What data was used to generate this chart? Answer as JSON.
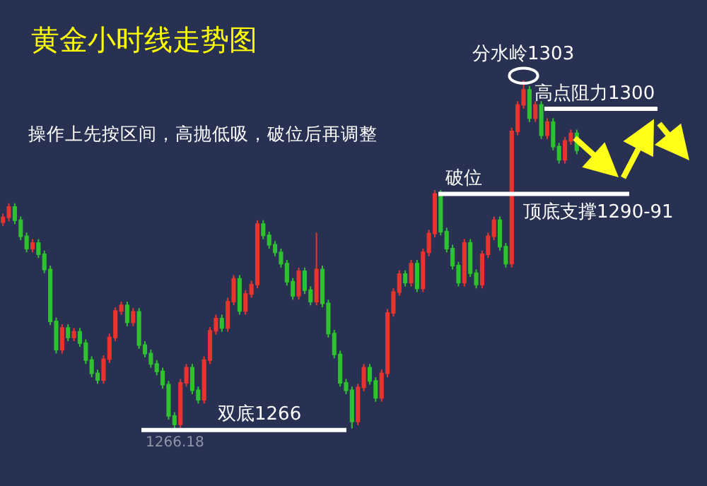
{
  "chart_data": {
    "type": "candlestick",
    "title": "黄金小时线走势图",
    "subtitle": "操作上先按区间，高抛低吸，破位后再调整",
    "categories": [
      null,
      null,
      null,
      null,
      null,
      null,
      null,
      null,
      null,
      null,
      null,
      null,
      null,
      null,
      null,
      null,
      null,
      null,
      null,
      null,
      null,
      null,
      null,
      null,
      null,
      null,
      null,
      null,
      null,
      null,
      null,
      null,
      null,
      null,
      null,
      null,
      null,
      null,
      null,
      null,
      null,
      null,
      null,
      null,
      null,
      null,
      null,
      null,
      null,
      null,
      null,
      null,
      null,
      null,
      null,
      null,
      null,
      null,
      null,
      null,
      null,
      null,
      null,
      null,
      null,
      null,
      null,
      null,
      null,
      null,
      null,
      null,
      null,
      null,
      null,
      null,
      null,
      null,
      null,
      null,
      null,
      null,
      null,
      null,
      null,
      null,
      null,
      null,
      null,
      null,
      null,
      null,
      null,
      null,
      null,
      null,
      null,
      null
    ],
    "ohlc": [
      [
        1288.0,
        1288.9,
        1287.6,
        1288.5
      ],
      [
        1288.5,
        1290.0,
        1288.1,
        1289.6
      ],
      [
        1289.6,
        1290.0,
        1287.8,
        1288.2
      ],
      [
        1288.2,
        1288.6,
        1286.1,
        1286.5
      ],
      [
        1286.5,
        1286.9,
        1284.8,
        1285.2
      ],
      [
        1285.2,
        1286.2,
        1284.8,
        1285.8
      ],
      [
        1285.8,
        1286.2,
        1284.2,
        1284.6
      ],
      [
        1284.6,
        1285.0,
        1282.6,
        1283.0
      ],
      [
        1283.0,
        1283.4,
        1277.1,
        1277.5
      ],
      [
        1277.5,
        1277.9,
        1274.1,
        1274.5
      ],
      [
        1274.5,
        1277.2,
        1274.1,
        1276.8
      ],
      [
        1276.8,
        1277.2,
        1275.4,
        1275.8
      ],
      [
        1275.8,
        1276.8,
        1275.4,
        1276.4
      ],
      [
        1276.4,
        1276.8,
        1274.8,
        1275.2
      ],
      [
        1275.2,
        1275.6,
        1273.0,
        1273.4
      ],
      [
        1273.4,
        1273.8,
        1271.6,
        1272.0
      ],
      [
        1272.0,
        1272.4,
        1270.9,
        1271.3
      ],
      [
        1271.3,
        1273.9,
        1270.9,
        1273.5
      ],
      [
        1273.5,
        1276.2,
        1273.1,
        1275.8
      ],
      [
        1275.8,
        1279.0,
        1275.4,
        1278.6
      ],
      [
        1278.6,
        1279.6,
        1278.2,
        1279.2
      ],
      [
        1279.2,
        1279.6,
        1277.0,
        1277.4
      ],
      [
        1277.4,
        1278.9,
        1277.0,
        1278.5
      ],
      [
        1278.5,
        1278.9,
        1274.6,
        1275.0
      ],
      [
        1275.0,
        1275.4,
        1273.7,
        1274.1
      ],
      [
        1274.1,
        1274.5,
        1272.6,
        1273.0
      ],
      [
        1273.0,
        1273.4,
        1271.8,
        1272.2
      ],
      [
        1272.2,
        1272.6,
        1270.4,
        1270.8
      ],
      [
        1270.8,
        1271.2,
        1267.1,
        1267.5
      ],
      [
        1267.5,
        1267.9,
        1266.0,
        1266.6
      ],
      [
        1266.6,
        1271.4,
        1266.2,
        1271.0
      ],
      [
        1271.0,
        1273.0,
        1270.6,
        1272.6
      ],
      [
        1272.6,
        1273.0,
        1269.8,
        1270.2
      ],
      [
        1270.2,
        1270.6,
        1268.8,
        1269.2
      ],
      [
        1269.2,
        1273.8,
        1268.8,
        1273.4
      ],
      [
        1273.4,
        1276.9,
        1273.0,
        1276.5
      ],
      [
        1276.5,
        1278.2,
        1276.1,
        1277.8
      ],
      [
        1277.8,
        1278.2,
        1276.4,
        1276.8
      ],
      [
        1276.8,
        1280.0,
        1276.4,
        1279.6
      ],
      [
        1279.6,
        1282.4,
        1279.2,
        1282.0
      ],
      [
        1282.0,
        1282.4,
        1278.2,
        1278.6
      ],
      [
        1278.6,
        1280.8,
        1278.2,
        1280.4
      ],
      [
        1280.4,
        1281.8,
        1280.0,
        1281.4
      ],
      [
        1281.4,
        1288.2,
        1281.0,
        1287.8
      ],
      [
        1287.8,
        1288.2,
        1286.2,
        1286.6
      ],
      [
        1286.6,
        1287.0,
        1285.2,
        1285.6
      ],
      [
        1285.6,
        1286.0,
        1284.4,
        1284.8
      ],
      [
        1284.8,
        1285.2,
        1283.2,
        1283.6
      ],
      [
        1283.6,
        1284.0,
        1281.3,
        1281.7
      ],
      [
        1281.7,
        1282.1,
        1279.8,
        1280.2
      ],
      [
        1280.2,
        1283.2,
        1279.8,
        1282.8
      ],
      [
        1282.8,
        1283.2,
        1280.4,
        1280.8
      ],
      [
        1280.8,
        1281.2,
        1279.2,
        1279.6
      ],
      [
        1279.6,
        1286.9,
        1279.2,
        1283.0
      ],
      [
        1283.0,
        1283.4,
        1279.0,
        1279.4
      ],
      [
        1279.4,
        1279.8,
        1275.8,
        1276.2
      ],
      [
        1276.2,
        1276.6,
        1273.6,
        1274.0
      ],
      [
        1274.0,
        1274.4,
        1270.6,
        1271.0
      ],
      [
        1271.0,
        1271.4,
        1269.8,
        1270.2
      ],
      [
        1270.2,
        1270.6,
        1266.18,
        1266.9
      ],
      [
        1266.9,
        1270.9,
        1266.5,
        1270.5
      ],
      [
        1270.5,
        1273.0,
        1270.1,
        1272.6
      ],
      [
        1272.6,
        1273.0,
        1270.8,
        1271.2
      ],
      [
        1271.2,
        1271.6,
        1269.0,
        1269.4
      ],
      [
        1269.4,
        1272.4,
        1269.0,
        1272.0
      ],
      [
        1272.0,
        1278.8,
        1271.6,
        1278.4
      ],
      [
        1278.4,
        1281.0,
        1278.0,
        1280.6
      ],
      [
        1280.6,
        1282.9,
        1280.2,
        1282.5
      ],
      [
        1282.5,
        1282.9,
        1281.2,
        1281.6
      ],
      [
        1281.6,
        1284.0,
        1281.2,
        1283.6
      ],
      [
        1283.6,
        1284.0,
        1280.6,
        1281.0
      ],
      [
        1281.0,
        1285.2,
        1280.6,
        1284.8
      ],
      [
        1284.8,
        1287.2,
        1284.4,
        1286.8
      ],
      [
        1286.8,
        1291.4,
        1286.4,
        1291.0
      ],
      [
        1291.0,
        1291.4,
        1286.6,
        1287.0
      ],
      [
        1287.0,
        1287.4,
        1284.8,
        1285.2
      ],
      [
        1285.2,
        1285.6,
        1283.0,
        1283.4
      ],
      [
        1283.4,
        1283.8,
        1281.2,
        1281.6
      ],
      [
        1281.6,
        1286.2,
        1281.2,
        1285.8
      ],
      [
        1285.8,
        1286.2,
        1282.2,
        1282.6
      ],
      [
        1282.6,
        1283.0,
        1281.0,
        1281.4
      ],
      [
        1281.4,
        1285.0,
        1281.0,
        1284.6
      ],
      [
        1284.6,
        1286.9,
        1284.2,
        1286.5
      ],
      [
        1286.5,
        1288.6,
        1286.1,
        1288.2
      ],
      [
        1288.2,
        1288.6,
        1285.0,
        1285.4
      ],
      [
        1285.4,
        1285.8,
        1283.2,
        1283.6
      ],
      [
        1283.6,
        1298.0,
        1283.2,
        1297.6
      ],
      [
        1297.6,
        1300.8,
        1297.2,
        1300.4
      ],
      [
        1300.4,
        1303.0,
        1300.0,
        1302.0
      ],
      [
        1302.0,
        1302.4,
        1298.6,
        1299.0
      ],
      [
        1299.0,
        1300.8,
        1298.6,
        1300.4
      ],
      [
        1300.4,
        1300.8,
        1296.8,
        1297.2
      ],
      [
        1297.2,
        1299.0,
        1296.8,
        1298.6
      ],
      [
        1298.6,
        1299.0,
        1295.6,
        1296.0
      ],
      [
        1296.0,
        1296.4,
        1294.2,
        1294.6
      ],
      [
        1294.6,
        1297.0,
        1294.2,
        1296.6
      ],
      [
        1296.6,
        1297.8,
        1296.2,
        1297.4
      ],
      [
        1297.4,
        1297.8,
        1295.2,
        1295.6
      ]
    ],
    "ref_lines": [
      {
        "axis": "y",
        "value": 1300,
        "label": "高点阻力1300",
        "color": "#ffffff"
      },
      {
        "axis": "y",
        "value": 1291,
        "label": "破位",
        "color": "#ffffff"
      },
      {
        "axis": "y",
        "value": 1266,
        "label": "双底1266",
        "color": "#ffffff"
      }
    ],
    "annotations": [
      "分水岭1303",
      "顶底支撑1290-91",
      "1266.18"
    ],
    "tick_labels": false,
    "grid": false
  }
}
